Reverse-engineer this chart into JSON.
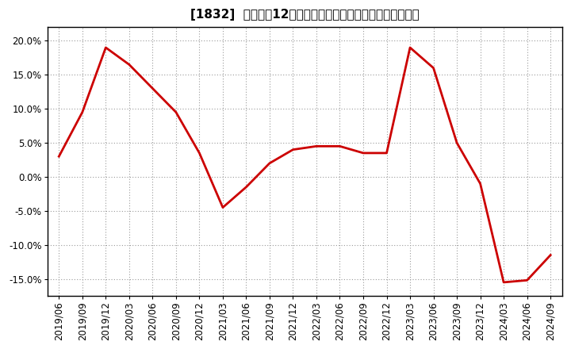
{
  "title": "[1832]  売上高の12か月移動合計の対前年同期増減率の推移",
  "dates": [
    "2019/06",
    "2019/09",
    "2019/12",
    "2020/03",
    "2020/06",
    "2020/09",
    "2020/12",
    "2021/03",
    "2021/06",
    "2021/09",
    "2021/12",
    "2022/03",
    "2022/06",
    "2022/09",
    "2022/12",
    "2023/03",
    "2023/06",
    "2023/09",
    "2023/12",
    "2024/03",
    "2024/06",
    "2024/09"
  ],
  "values": [
    3.0,
    9.5,
    19.0,
    16.5,
    13.0,
    9.5,
    3.5,
    -4.5,
    -1.5,
    2.0,
    4.0,
    4.5,
    4.5,
    3.5,
    3.5,
    19.0,
    16.0,
    5.0,
    -1.0,
    -15.5,
    -15.2,
    -11.5
  ],
  "line_color": "#cc0000",
  "line_width": 2.0,
  "bg_color": "#ffffff",
  "plot_bg_color": "#ffffff",
  "grid_color": "#999999",
  "ylim": [
    -17.5,
    22.0
  ],
  "yticks": [
    -15.0,
    -10.0,
    -5.0,
    0.0,
    5.0,
    10.0,
    15.0,
    20.0
  ],
  "title_fontsize": 11,
  "tick_fontsize": 8.5
}
